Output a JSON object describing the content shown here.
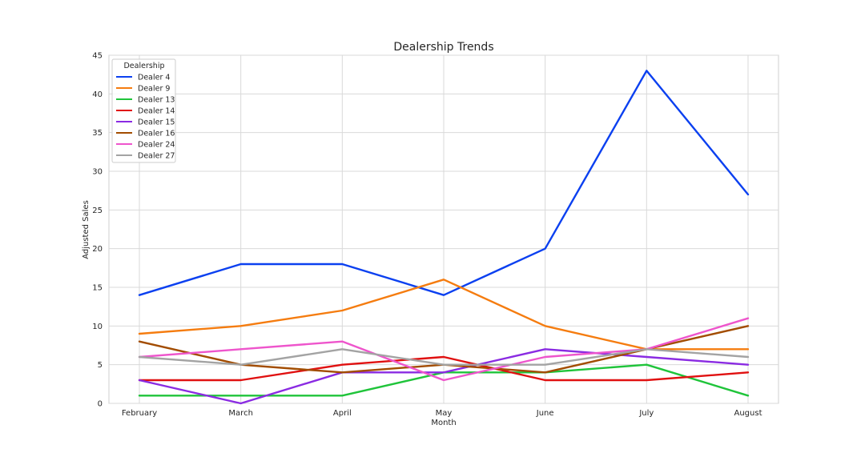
{
  "chart_data": {
    "type": "line",
    "title": "Dealership Trends",
    "xlabel": "Month",
    "ylabel": "Adjusted Sales",
    "categories": [
      "February",
      "March",
      "April",
      "May",
      "June",
      "July",
      "August"
    ],
    "ylim": [
      0,
      45
    ],
    "yticks": [
      0,
      5,
      10,
      15,
      20,
      25,
      30,
      35,
      40,
      45
    ],
    "grid": true,
    "legend": {
      "title": "Dealership",
      "placement": "top-left"
    },
    "series": [
      {
        "name": "Dealer 4",
        "color": "#0b40f0",
        "values": [
          14,
          18,
          18,
          14,
          20,
          43,
          27
        ]
      },
      {
        "name": "Dealer 9",
        "color": "#f57c0f",
        "values": [
          9,
          10,
          12,
          16,
          10,
          7,
          7
        ]
      },
      {
        "name": "Dealer 13",
        "color": "#1fc43a",
        "values": [
          1,
          1,
          1,
          4,
          4,
          5,
          1
        ]
      },
      {
        "name": "Dealer 14",
        "color": "#e01010",
        "values": [
          3,
          3,
          5,
          6,
          3,
          3,
          4
        ]
      },
      {
        "name": "Dealer 15",
        "color": "#8a2be2",
        "values": [
          3,
          0,
          4,
          4,
          7,
          6,
          5
        ]
      },
      {
        "name": "Dealer 16",
        "color": "#a24c00",
        "values": [
          8,
          5,
          4,
          5,
          4,
          7,
          10
        ]
      },
      {
        "name": "Dealer 24",
        "color": "#ee55cc",
        "values": [
          6,
          7,
          8,
          3,
          6,
          7,
          11
        ]
      },
      {
        "name": "Dealer 27",
        "color": "#a3a3a3",
        "values": [
          6,
          5,
          7,
          5,
          5,
          7,
          6
        ]
      }
    ]
  }
}
